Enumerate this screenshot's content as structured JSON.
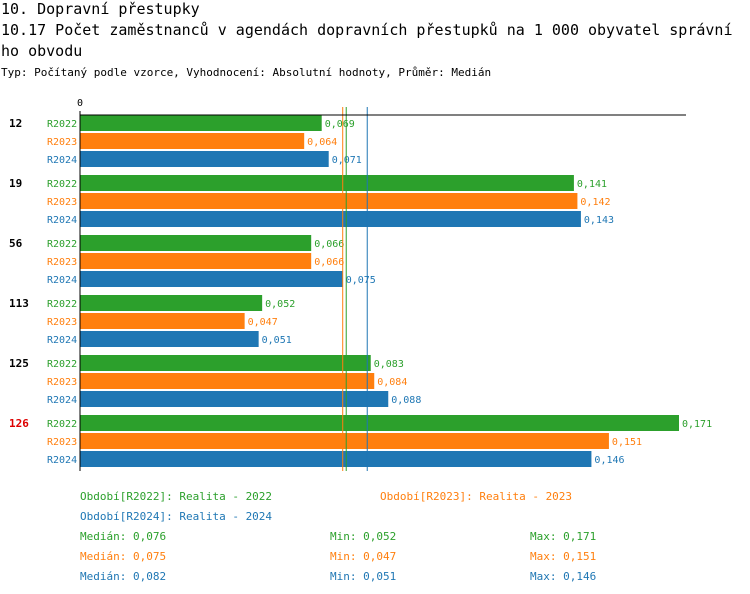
{
  "header": {
    "title": "10. Dopravní přestupky",
    "subtitle_line1": "10.17 Počet zaměstnanců v agendách dopravních přestupků na 1 000 obyvatel správní",
    "subtitle_line2": "ho obvodu",
    "type_line": "Typ: Počítaný podle vzorce, Vyhodnocení: Absolutní hodnoty, Průměr: Medián"
  },
  "colors": {
    "R2022": "#2ca02c",
    "R2023": "#ff7f0e",
    "R2024": "#1f77b4",
    "highlight": "#dd0000"
  },
  "chart_data": {
    "type": "bar",
    "orientation": "horizontal",
    "axis_zero_label": "0",
    "xlim": [
      0,
      0.173
    ],
    "categories": [
      "12",
      "19",
      "56",
      "113",
      "125",
      "126"
    ],
    "highlighted_category": "126",
    "series": [
      {
        "name": "R2022",
        "values": [
          0.069,
          0.141,
          0.066,
          0.052,
          0.083,
          0.171
        ],
        "labels": [
          "0,069",
          "0,141",
          "0,066",
          "0,052",
          "0,083",
          "0,171"
        ],
        "median": 0.076
      },
      {
        "name": "R2023",
        "values": [
          0.064,
          0.142,
          0.066,
          0.047,
          0.084,
          0.151
        ],
        "labels": [
          "0,064",
          "0,142",
          "0,066",
          "0,047",
          "0,084",
          "0,151"
        ],
        "median": 0.075
      },
      {
        "name": "R2024",
        "values": [
          0.071,
          0.143,
          0.075,
          0.051,
          0.088,
          0.146
        ],
        "labels": [
          "0,071",
          "0,143",
          "0,075",
          "0,051",
          "0,088",
          "0,146"
        ],
        "median": 0.082
      }
    ]
  },
  "legend": {
    "periods": [
      "Období[R2022]: Realita - 2022",
      "Období[R2023]: Realita - 2023",
      "Období[R2024]: Realita - 2024"
    ],
    "stats": [
      {
        "median": "Medián: 0,076",
        "min": "Min: 0,052",
        "max": "Max: 0,171"
      },
      {
        "median": "Medián: 0,075",
        "min": "Min: 0,047",
        "max": "Max: 0,151"
      },
      {
        "median": "Medián: 0,082",
        "min": "Min: 0,051",
        "max": "Max: 0,146"
      }
    ]
  }
}
